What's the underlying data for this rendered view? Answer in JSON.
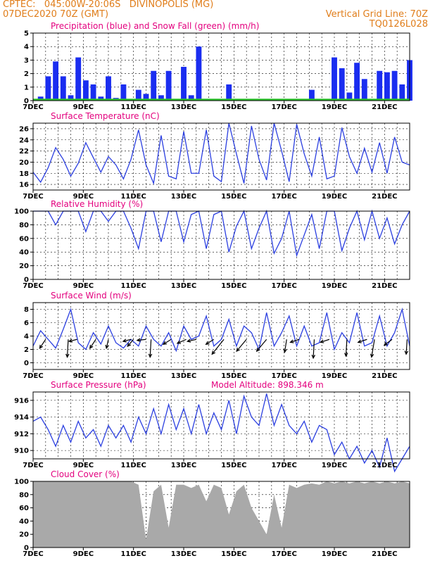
{
  "header": {
    "line1": "CPTEC:   045:00W-20:06S   DIVINOPOLIS (MG)",
    "line2": "07DEC2020 70Z (GMT)",
    "right1": "Vertical Grid Line: 70Z",
    "right2": "TQ0126L028"
  },
  "colors": {
    "header": "#e07d1a",
    "title": "#e3007e",
    "line": "#2b3fe0",
    "bar": "#1a2df0",
    "snow": "#2cc02c",
    "cloud": "#a9a9a9"
  },
  "x_labels": [
    "7DEC",
    "9DEC",
    "11DEC",
    "13DEC",
    "15DEC",
    "17DEC",
    "19DEC",
    "21DEC"
  ],
  "chart_data": [
    {
      "type": "bar",
      "title": "Precipitation (blue) and Snow Fall (green) (mm/h)",
      "ylim": [
        0,
        5
      ],
      "yticks": [
        "0",
        "1",
        "2",
        "3",
        "4",
        "5"
      ],
      "x": [
        7.0,
        7.3,
        7.6,
        7.9,
        8.2,
        8.5,
        8.8,
        9.1,
        9.4,
        9.7,
        10.0,
        10.3,
        10.6,
        10.9,
        11.2,
        11.5,
        11.8,
        12.1,
        12.4,
        12.7,
        13.0,
        13.3,
        13.6,
        13.9,
        14.2,
        14.5,
        14.8,
        15.1,
        15.4,
        15.7,
        16.0,
        16.3,
        16.6,
        16.9,
        17.2,
        17.5,
        17.8,
        18.1,
        18.4,
        18.7,
        19.0,
        19.3,
        19.6,
        19.9,
        20.2,
        20.5,
        20.8,
        21.1,
        21.4,
        21.7,
        22.0
      ],
      "series": [
        {
          "name": "Precipitation",
          "values": [
            0.0,
            0.3,
            1.8,
            2.9,
            1.8,
            0.4,
            3.2,
            1.5,
            1.2,
            0.3,
            1.8,
            0.2,
            1.2,
            0.0,
            0.8,
            0.5,
            2.2,
            0.4,
            2.2,
            0.0,
            2.5,
            0.4,
            4.0,
            0.0,
            0.0,
            0.0,
            1.2,
            0.0,
            0.0,
            0.0,
            0.0,
            0.0,
            0.0,
            0.0,
            0.0,
            0.0,
            0.0,
            0.8,
            0.0,
            0.0,
            3.2,
            2.4,
            0.6,
            2.8,
            1.6,
            0.0,
            2.2,
            2.1,
            2.2,
            1.2,
            3.0
          ]
        },
        {
          "name": "Snow Fall",
          "values": [
            0.05,
            0.05,
            0.05,
            0.05,
            0.05,
            0.05,
            0.05,
            0.05,
            0.05,
            0.05,
            0.05,
            0.05,
            0.05,
            0.05,
            0.05,
            0.05,
            0.05,
            0.05,
            0.05,
            0.05,
            0.05,
            0.05,
            0.05,
            0.05,
            0.05,
            0.05,
            0.05,
            0.05,
            0.05,
            0.05,
            0.05,
            0.05,
            0.05,
            0.05,
            0.05,
            0.05,
            0.05,
            0.05,
            0.05,
            0.05,
            0.05,
            0.05,
            0.05,
            0.05,
            0.05,
            0.05,
            0.05,
            0.05,
            0.05,
            0.05,
            0.05
          ]
        }
      ]
    },
    {
      "type": "line",
      "title": "Surface Temperature (nC)",
      "ylim": [
        15,
        27
      ],
      "yticks": [
        "16",
        "18",
        "20",
        "22",
        "24",
        "26"
      ],
      "x": [
        7.0,
        7.3,
        7.6,
        7.9,
        8.2,
        8.5,
        8.8,
        9.1,
        9.4,
        9.7,
        10.0,
        10.3,
        10.6,
        10.9,
        11.2,
        11.5,
        11.8,
        12.1,
        12.4,
        12.7,
        13.0,
        13.3,
        13.6,
        13.9,
        14.2,
        14.5,
        14.8,
        15.1,
        15.4,
        15.7,
        16.0,
        16.3,
        16.6,
        16.9,
        17.2,
        17.5,
        17.8,
        18.1,
        18.4,
        18.7,
        19.0,
        19.3,
        19.6,
        19.9,
        20.2,
        20.5,
        20.8,
        21.1,
        21.4,
        21.7,
        22.0
      ],
      "values": [
        18.2,
        16.4,
        19.0,
        22.6,
        20.5,
        17.5,
        19.8,
        23.5,
        20.8,
        18.2,
        21.0,
        19.5,
        17.0,
        20.5,
        25.8,
        19.5,
        16.2,
        24.8,
        17.5,
        17.0,
        25.5,
        18.0,
        18.0,
        25.8,
        17.5,
        16.5,
        27.0,
        21.5,
        16.2,
        26.5,
        20.5,
        16.8,
        27.0,
        22.0,
        16.5,
        26.8,
        21.5,
        17.5,
        24.5,
        17.0,
        17.5,
        26.2,
        21.0,
        18.0,
        22.5,
        18.2,
        23.5,
        18.0,
        24.5,
        20.0,
        19.5
      ]
    },
    {
      "type": "line",
      "title": "Relative Humidity (%)",
      "ylim": [
        0,
        100
      ],
      "yticks": [
        "0",
        "20",
        "40",
        "60",
        "80",
        "100"
      ],
      "x": [
        7.0,
        7.3,
        7.6,
        7.9,
        8.2,
        8.5,
        8.8,
        9.1,
        9.4,
        9.7,
        10.0,
        10.3,
        10.6,
        10.9,
        11.2,
        11.5,
        11.8,
        12.1,
        12.4,
        12.7,
        13.0,
        13.3,
        13.6,
        13.9,
        14.2,
        14.5,
        14.8,
        15.1,
        15.4,
        15.7,
        16.0,
        16.3,
        16.6,
        16.9,
        17.2,
        17.5,
        17.8,
        18.1,
        18.4,
        18.7,
        19.0,
        19.3,
        19.6,
        19.9,
        20.2,
        20.5,
        20.8,
        21.1,
        21.4,
        21.7,
        22.0
      ],
      "values": [
        100,
        100,
        100,
        80,
        100,
        100,
        100,
        70,
        100,
        100,
        85,
        100,
        100,
        75,
        45,
        100,
        100,
        55,
        100,
        100,
        55,
        95,
        100,
        45,
        95,
        100,
        40,
        78,
        100,
        45,
        75,
        100,
        38,
        60,
        100,
        35,
        65,
        95,
        45,
        100,
        100,
        42,
        75,
        100,
        58,
        100,
        60,
        90,
        52,
        80,
        100
      ]
    },
    {
      "type": "line",
      "title": "Surface Wind (m/s)",
      "ylim": [
        -1,
        9
      ],
      "yticks": [
        "0",
        "2",
        "4",
        "6",
        "8"
      ],
      "x": [
        7.0,
        7.3,
        7.6,
        7.9,
        8.2,
        8.5,
        8.8,
        9.1,
        9.4,
        9.7,
        10.0,
        10.3,
        10.6,
        10.9,
        11.2,
        11.5,
        11.8,
        12.1,
        12.4,
        12.7,
        13.0,
        13.3,
        13.6,
        13.9,
        14.2,
        14.5,
        14.8,
        15.1,
        15.4,
        15.7,
        16.0,
        16.3,
        16.6,
        16.9,
        17.2,
        17.5,
        17.8,
        18.1,
        18.4,
        18.7,
        19.0,
        19.3,
        19.6,
        19.9,
        20.2,
        20.5,
        20.8,
        21.1,
        21.4,
        21.7,
        22.0
      ],
      "values": [
        2.5,
        4.8,
        3.5,
        2.2,
        5.0,
        8.0,
        3.0,
        2.0,
        4.5,
        2.8,
        5.5,
        3.0,
        2.2,
        3.5,
        2.5,
        5.5,
        3.5,
        2.5,
        4.5,
        1.8,
        5.5,
        3.5,
        4.0,
        7.0,
        2.5,
        3.5,
        6.5,
        2.5,
        5.5,
        4.5,
        2.0,
        7.5,
        2.5,
        4.5,
        7.0,
        2.5,
        5.5,
        2.5,
        3.0,
        7.5,
        2.0,
        4.5,
        3.0,
        7.5,
        2.5,
        3.0,
        7.0,
        2.5,
        4.5,
        8.0,
        2.5
      ],
      "arrows": [
        {
          "day": 7.5,
          "u": -0.6,
          "v": -0.9
        },
        {
          "day": 8.4,
          "u": -0.1,
          "v": -1.8
        },
        {
          "day": 8.75,
          "u": -0.8,
          "v": -0.2
        },
        {
          "day": 9.5,
          "u": -0.6,
          "v": -0.9
        },
        {
          "day": 10.0,
          "u": -0.2,
          "v": -0.9
        },
        {
          "day": 10.9,
          "u": -0.8,
          "v": -0.2
        },
        {
          "day": 11.0,
          "u": -0.6,
          "v": -0.7
        },
        {
          "day": 11.5,
          "u": -0.9,
          "v": -0.1
        },
        {
          "day": 11.7,
          "u": -0.1,
          "v": -1.8
        },
        {
          "day": 12.5,
          "u": -0.8,
          "v": -0.5
        },
        {
          "day": 13.1,
          "u": -0.9,
          "v": -0.4
        },
        {
          "day": 13.5,
          "u": -0.9,
          "v": -0.2
        },
        {
          "day": 14.2,
          "u": -0.8,
          "v": -0.5
        },
        {
          "day": 14.6,
          "u": -1.2,
          "v": -1.5
        },
        {
          "day": 15.5,
          "u": -1.0,
          "v": -1.2
        },
        {
          "day": 16.3,
          "u": -1.0,
          "v": -1.2
        },
        {
          "day": 17.1,
          "u": -0.2,
          "v": -1.3
        },
        {
          "day": 17.6,
          "u": -0.9,
          "v": -0.3
        },
        {
          "day": 18.2,
          "u": -0.1,
          "v": -1.9
        },
        {
          "day": 18.8,
          "u": -0.9,
          "v": -0.3
        },
        {
          "day": 19.5,
          "u": -0.1,
          "v": -1.7
        },
        {
          "day": 20.3,
          "u": -0.9,
          "v": -0.3
        },
        {
          "day": 20.6,
          "u": -0.3,
          "v": -1.8
        },
        {
          "day": 21.3,
          "u": -0.8,
          "v": -0.6
        },
        {
          "day": 21.9,
          "u": -0.1,
          "v": -1.5
        }
      ]
    },
    {
      "type": "line",
      "title": "Surface Pressure (hPa)",
      "annotation": "Model Altitude: 898.346 m",
      "ylim": [
        909,
        917
      ],
      "yticks": [
        "910",
        "912",
        "914",
        "916"
      ],
      "x": [
        7.0,
        7.3,
        7.6,
        7.9,
        8.2,
        8.5,
        8.8,
        9.1,
        9.4,
        9.7,
        10.0,
        10.3,
        10.6,
        10.9,
        11.2,
        11.5,
        11.8,
        12.1,
        12.4,
        12.7,
        13.0,
        13.3,
        13.6,
        13.9,
        14.2,
        14.5,
        14.8,
        15.1,
        15.4,
        15.7,
        16.0,
        16.3,
        16.6,
        16.9,
        17.2,
        17.5,
        17.8,
        18.1,
        18.4,
        18.7,
        19.0,
        19.3,
        19.6,
        19.9,
        20.2,
        20.5,
        20.8,
        21.1,
        21.4,
        21.7,
        22.0
      ],
      "values": [
        913.5,
        914.0,
        912.5,
        910.5,
        913.0,
        911.0,
        913.5,
        911.5,
        912.5,
        910.5,
        913.0,
        911.5,
        913.0,
        911.0,
        914.0,
        912.0,
        915.0,
        912.0,
        915.5,
        912.5,
        915.0,
        912.0,
        915.5,
        912.0,
        914.5,
        912.5,
        916.0,
        912.0,
        916.5,
        914.0,
        913.0,
        916.8,
        913.0,
        915.5,
        913.0,
        912.0,
        913.5,
        911.0,
        913.0,
        912.5,
        909.5,
        911.0,
        909.0,
        910.5,
        908.5,
        910.0,
        908.0,
        911.5,
        907.5,
        909.0,
        910.5
      ]
    },
    {
      "type": "area",
      "title": "Cloud Cover (%)",
      "ylim": [
        0,
        100
      ],
      "yticks": [
        "0",
        "20",
        "40",
        "60",
        "80",
        "100"
      ],
      "x": [
        7.0,
        7.3,
        7.6,
        7.9,
        8.2,
        8.5,
        8.8,
        9.1,
        9.4,
        9.7,
        10.0,
        10.3,
        10.6,
        10.9,
        11.2,
        11.5,
        11.8,
        12.1,
        12.4,
        12.7,
        13.0,
        13.3,
        13.6,
        13.9,
        14.2,
        14.5,
        14.8,
        15.1,
        15.4,
        15.7,
        16.0,
        16.3,
        16.6,
        16.9,
        17.2,
        17.5,
        17.8,
        18.1,
        18.4,
        18.7,
        19.0,
        19.3,
        19.6,
        19.9,
        20.2,
        20.5,
        20.8,
        21.1,
        21.4,
        21.7,
        22.0
      ],
      "values": [
        100,
        100,
        100,
        100,
        100,
        100,
        100,
        100,
        100,
        100,
        100,
        100,
        100,
        100,
        95,
        12,
        85,
        95,
        30,
        95,
        95,
        90,
        95,
        70,
        95,
        90,
        50,
        85,
        95,
        60,
        40,
        20,
        80,
        30,
        95,
        90,
        95,
        97,
        95,
        100,
        97,
        100,
        97,
        100,
        97,
        100,
        97,
        100,
        97,
        100,
        97
      ]
    }
  ]
}
